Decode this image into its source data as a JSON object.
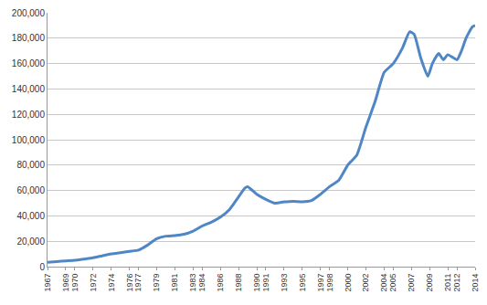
{
  "chart_data": {
    "type": "line",
    "color": "#4f86c6",
    "grid": true,
    "x": [
      1967,
      1968,
      1969,
      1970,
      1971,
      1972,
      1973,
      1974,
      1975,
      1976,
      1977,
      1978,
      1979,
      1980,
      1981,
      1982,
      1983,
      1984,
      1985,
      1986,
      1987,
      1988,
      1988.7,
      1989,
      1990,
      1991,
      1992,
      1993,
      1994,
      1995,
      1996,
      1997,
      1998,
      1999,
      2000,
      2001,
      2002,
      2003,
      2004,
      2005,
      2006,
      2006.8,
      2007.3,
      2008,
      2008.8,
      2009.3,
      2010,
      2010.5,
      2011,
      2012,
      2012.5,
      2013,
      2013.7,
      2014
    ],
    "values": [
      3500,
      4000,
      4500,
      5000,
      6000,
      7000,
      8500,
      10000,
      11000,
      12000,
      13000,
      17000,
      22000,
      24000,
      24500,
      25500,
      28000,
      32000,
      35000,
      39000,
      45000,
      55000,
      62000,
      63000,
      57000,
      53000,
      50000,
      51000,
      51500,
      51000,
      52000,
      57000,
      63000,
      68000,
      80000,
      88000,
      110000,
      130000,
      153000,
      160000,
      172000,
      185000,
      183000,
      165000,
      150000,
      160000,
      168000,
      163000,
      167000,
      163000,
      170000,
      180000,
      189000,
      190000
    ],
    "xlim": [
      1967,
      2014
    ],
    "xticks": [
      1967,
      1969,
      1970,
      1972,
      1974,
      1976,
      1977,
      1979,
      1981,
      1983,
      1984,
      1986,
      1988,
      1990,
      1991,
      1993,
      1995,
      1997,
      1998,
      2000,
      2002,
      2004,
      2005,
      2007,
      2009,
      2011,
      2012,
      2014
    ],
    "ylim": [
      0,
      200000
    ],
    "yticks": [
      0,
      {
        "value": 20000,
        "label": "20,000"
      },
      {
        "value": 40000,
        "label": "40,000"
      },
      {
        "value": 60000,
        "label": "60,000"
      },
      {
        "value": 80000,
        "label": "80,000"
      },
      {
        "value": 100000,
        "label": "100,000"
      },
      {
        "value": 120000,
        "label": "120,000"
      },
      {
        "value": 140000,
        "label": "140,000"
      },
      {
        "value": 160000,
        "label": "160,000"
      },
      {
        "value": 180000,
        "label": "180,000"
      },
      {
        "value": 200000,
        "label": "200,000"
      }
    ]
  }
}
